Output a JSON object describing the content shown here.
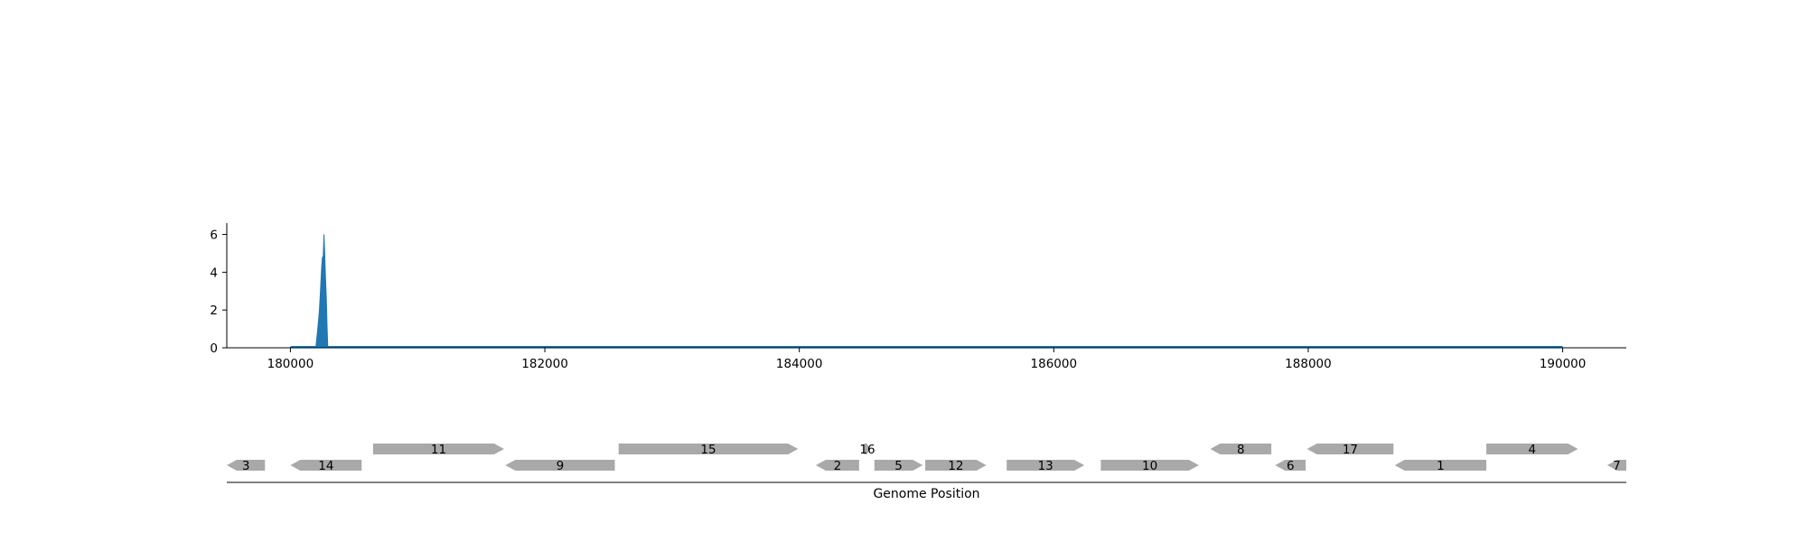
{
  "chart_data": [
    {
      "type": "area",
      "xlim": [
        179500,
        190500
      ],
      "ylim": [
        0,
        6.6
      ],
      "x_ticks": [
        180000,
        182000,
        184000,
        186000,
        188000,
        190000
      ],
      "y_ticks": [
        0,
        2,
        4,
        6
      ],
      "x_tick_labels": [
        "180000",
        "182000",
        "184000",
        "186000",
        "188000",
        "190000"
      ],
      "y_tick_labels": [
        "0",
        "2",
        "4",
        "6"
      ],
      "grid": false,
      "colors": {
        "coverage": "#1f77b4"
      },
      "baseline_range": [
        180000,
        190000
      ],
      "coverage": {
        "x": [
          180200,
          180215,
          180222,
          180228,
          180234,
          180240,
          180246,
          180252,
          180258,
          180264,
          180270,
          180276,
          180282,
          180288,
          180294
        ],
        "values": [
          0,
          1.0,
          1.5,
          2.0,
          2.7,
          3.5,
          4.3,
          4.8,
          4.8,
          6.0,
          4.9,
          3.7,
          2.7,
          1.2,
          0
        ]
      }
    },
    {
      "type": "gene-map",
      "xlabel": "Genome Position",
      "xlim": [
        179500,
        190500
      ],
      "colors": {
        "gene": "#a9a9a9"
      },
      "genes": [
        {
          "label": "3",
          "start": 179500,
          "end": 179800,
          "strand": "-",
          "row": 0
        },
        {
          "label": "14",
          "start": 180000,
          "end": 180560,
          "strand": "-",
          "row": 0
        },
        {
          "label": "11",
          "start": 180650,
          "end": 181680,
          "strand": "+",
          "row": 1
        },
        {
          "label": "9",
          "start": 181690,
          "end": 182550,
          "strand": "-",
          "row": 0
        },
        {
          "label": "15",
          "start": 182580,
          "end": 183990,
          "strand": "+",
          "row": 1
        },
        {
          "label": "2",
          "start": 184130,
          "end": 184470,
          "strand": "-",
          "row": 0
        },
        {
          "label": "16",
          "start": 184510,
          "end": 184560,
          "strand": "+",
          "row": 1
        },
        {
          "label": "5",
          "start": 184590,
          "end": 184970,
          "strand": "+",
          "row": 0
        },
        {
          "label": "12",
          "start": 184990,
          "end": 185470,
          "strand": "+",
          "row": 0
        },
        {
          "label": "13",
          "start": 185630,
          "end": 186240,
          "strand": "+",
          "row": 0
        },
        {
          "label": "10",
          "start": 186370,
          "end": 187140,
          "strand": "+",
          "row": 0
        },
        {
          "label": "8",
          "start": 187230,
          "end": 187710,
          "strand": "-",
          "row": 1
        },
        {
          "label": "6",
          "start": 187740,
          "end": 187980,
          "strand": "-",
          "row": 0
        },
        {
          "label": "17",
          "start": 187990,
          "end": 188670,
          "strand": "-",
          "row": 1
        },
        {
          "label": "1",
          "start": 188680,
          "end": 189400,
          "strand": "-",
          "row": 0
        },
        {
          "label": "4",
          "start": 189400,
          "end": 190120,
          "strand": "+",
          "row": 1
        },
        {
          "label": "7",
          "start": 190350,
          "end": 190500,
          "strand": "-",
          "row": 0
        }
      ]
    }
  ]
}
